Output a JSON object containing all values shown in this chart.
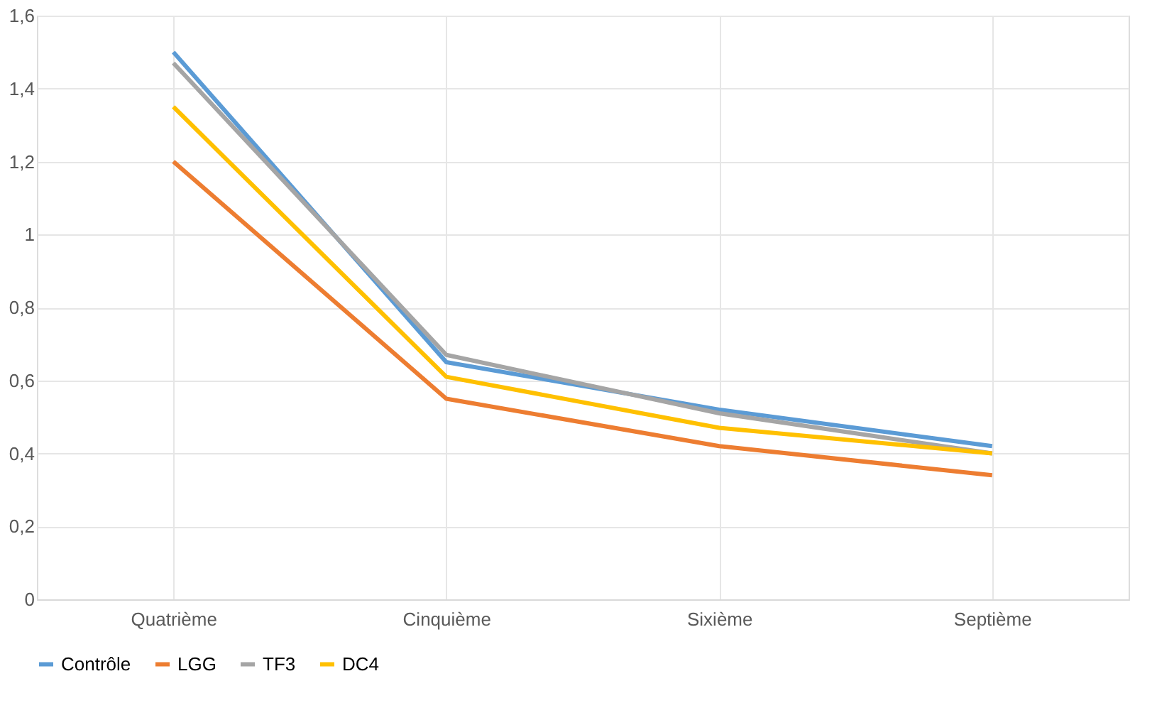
{
  "chart_data": {
    "type": "line",
    "categories": [
      "Quatrième",
      "Cinquième",
      "Sixième",
      "Septième"
    ],
    "series": [
      {
        "name": "Contrôle",
        "color": "#5b9bd5",
        "values": [
          1.5,
          0.65,
          0.52,
          0.42
        ]
      },
      {
        "name": "LGG",
        "color": "#ed7d31",
        "values": [
          1.2,
          0.55,
          0.42,
          0.34
        ]
      },
      {
        "name": "TF3",
        "color": "#a5a5a5",
        "values": [
          1.47,
          0.67,
          0.51,
          0.4
        ]
      },
      {
        "name": "DC4",
        "color": "#ffc000",
        "values": [
          1.35,
          0.61,
          0.47,
          0.4
        ]
      }
    ],
    "ylim": [
      0,
      1.6
    ],
    "yticks": [
      0,
      {
        "value": 0.2,
        "label": "0,2"
      },
      {
        "value": 0.4,
        "label": "0,4"
      },
      {
        "value": 0.6,
        "label": "0,6"
      },
      {
        "value": 0.8,
        "label": "0,8"
      },
      1,
      {
        "value": 1.2,
        "label": "1,2"
      },
      {
        "value": 1.4,
        "label": "1,4"
      },
      {
        "value": 1.6,
        "label": "1,6"
      }
    ],
    "grid": true,
    "legend": "bottom",
    "marker": "none",
    "line_style": "solid"
  }
}
